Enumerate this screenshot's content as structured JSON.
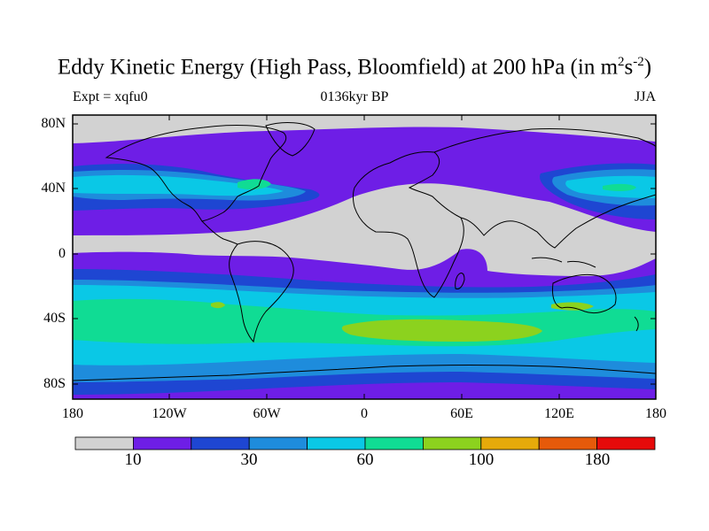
{
  "title": {
    "main": "Eddy Kinetic Energy (High Pass, Bloomfield) at 200 hPa (in m",
    "sup1": "2",
    "mid": "s",
    "sup2": "-2",
    "end": ")"
  },
  "subtitle": {
    "left": "Expt = xqfu0",
    "center": "0136kyr BP",
    "right": "JJA"
  },
  "lat_labels": [
    "80N",
    "40N",
    "0",
    "40S",
    "80S"
  ],
  "lon_labels": [
    "180",
    "120W",
    "60W",
    "0",
    "60E",
    "120E",
    "180"
  ],
  "colorbar": {
    "colors": [
      "#d2d2d2",
      "#6e1ee6",
      "#1e46d2",
      "#1e8cdc",
      "#0ac8e6",
      "#10dc94",
      "#8cd21e",
      "#e6aa0a",
      "#e65a0a",
      "#e60a0a"
    ],
    "labels": [
      "10",
      "30",
      "60",
      "100",
      "180"
    ]
  }
}
